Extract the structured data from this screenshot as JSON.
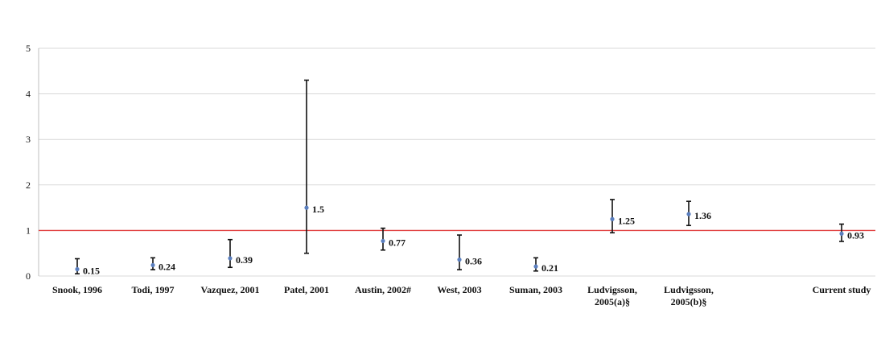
{
  "chart_data": {
    "type": "scatter",
    "title": "",
    "xlabel": "",
    "ylabel": "",
    "ylim": [
      0,
      5
    ],
    "yticks": [
      "0",
      "1",
      "2",
      "3",
      "4",
      "5"
    ],
    "grid": true,
    "legend": "none",
    "categories": [
      [
        "Snook, 1996"
      ],
      [
        "Todi, 1997"
      ],
      [
        "Vazquez, 2001"
      ],
      [
        "Patel, 2001"
      ],
      [
        "Austin, 2002#"
      ],
      [
        "West, 2003"
      ],
      [
        "Suman, 2003"
      ],
      [
        "Ludvigsson,",
        "2005(a)§"
      ],
      [
        "Ludvigsson,",
        "2005(b)§"
      ],
      [
        "Current study"
      ]
    ],
    "x_positions": [
      1,
      2,
      3,
      4,
      5,
      6,
      7,
      8,
      9,
      10.5
    ],
    "values": [
      0.15,
      0.24,
      0.39,
      1.5,
      0.77,
      0.36,
      0.21,
      1.25,
      1.36,
      0.93
    ],
    "labels": [
      "0.15",
      "0.24",
      "0.39",
      "1.5",
      "0.77",
      "0.36",
      "0.21",
      "1.25",
      "1.36",
      "0.93"
    ],
    "lower": [
      0.05,
      0.14,
      0.19,
      0.5,
      0.57,
      0.14,
      0.11,
      0.95,
      1.11,
      0.76
    ],
    "upper": [
      0.38,
      0.4,
      0.8,
      4.3,
      1.05,
      0.9,
      0.4,
      1.68,
      1.64,
      1.14
    ],
    "reference_line": 1,
    "colors": {
      "point": "#5b7fbf",
      "reference": "#e03a3a",
      "gridline": "#d9d9d9",
      "errorbar": "#111111"
    }
  }
}
